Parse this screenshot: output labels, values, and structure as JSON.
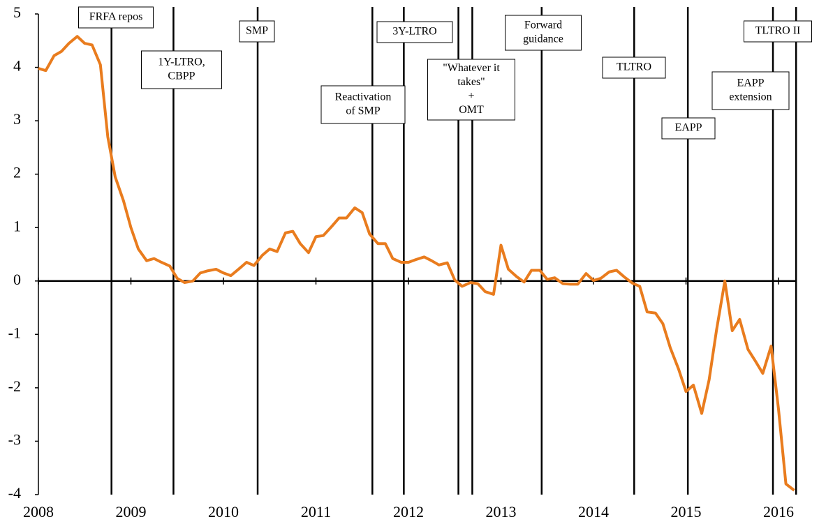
{
  "chart_data": {
    "type": "line",
    "x": [
      2008.0,
      2008.08,
      2008.17,
      2008.25,
      2008.33,
      2008.42,
      2008.5,
      2008.58,
      2008.67,
      2008.75,
      2008.83,
      2008.92,
      2009.0,
      2009.08,
      2009.17,
      2009.25,
      2009.33,
      2009.42,
      2009.5,
      2009.58,
      2009.67,
      2009.75,
      2009.83,
      2009.92,
      2010.0,
      2010.08,
      2010.17,
      2010.25,
      2010.33,
      2010.42,
      2010.5,
      2010.58,
      2010.67,
      2010.75,
      2010.83,
      2010.92,
      2011.0,
      2011.08,
      2011.17,
      2011.25,
      2011.33,
      2011.42,
      2011.5,
      2011.58,
      2011.67,
      2011.75,
      2011.83,
      2011.92,
      2012.0,
      2012.08,
      2012.17,
      2012.25,
      2012.33,
      2012.42,
      2012.5,
      2012.58,
      2012.67,
      2012.75,
      2012.83,
      2012.92,
      2013.0,
      2013.08,
      2013.17,
      2013.25,
      2013.33,
      2013.42,
      2013.5,
      2013.58,
      2013.67,
      2013.75,
      2013.83,
      2013.92,
      2014.0,
      2014.08,
      2014.17,
      2014.25,
      2014.33,
      2014.42,
      2014.5,
      2014.58,
      2014.67,
      2014.75,
      2014.83,
      2014.92,
      2015.0,
      2015.08,
      2015.17,
      2015.25,
      2015.33,
      2015.42,
      2015.5,
      2015.58,
      2015.67,
      2015.75,
      2015.83,
      2015.92,
      2016.0,
      2016.08,
      2016.17
    ],
    "series": [
      {
        "color": "#e97c1e",
        "values": [
          3.98,
          3.94,
          4.22,
          4.3,
          4.45,
          4.58,
          4.45,
          4.42,
          4.05,
          2.7,
          1.95,
          1.5,
          1.0,
          0.6,
          0.38,
          0.42,
          0.35,
          0.28,
          0.05,
          -0.03,
          0.0,
          0.15,
          0.19,
          0.22,
          0.15,
          0.1,
          0.23,
          0.35,
          0.29,
          0.48,
          0.6,
          0.55,
          0.9,
          0.93,
          0.7,
          0.53,
          0.83,
          0.85,
          1.02,
          1.18,
          1.18,
          1.37,
          1.28,
          0.88,
          0.7,
          0.7,
          0.42,
          0.35,
          0.35,
          0.4,
          0.45,
          0.38,
          0.3,
          0.34,
          0.02,
          -0.1,
          -0.03,
          -0.05,
          -0.2,
          -0.25,
          0.67,
          0.22,
          0.08,
          -0.02,
          0.2,
          0.2,
          0.03,
          0.06,
          -0.05,
          -0.06,
          -0.06,
          0.14,
          0.01,
          0.05,
          0.17,
          0.2,
          0.08,
          -0.04,
          -0.1,
          -0.58,
          -0.6,
          -0.8,
          -1.25,
          -1.65,
          -2.07,
          -1.95,
          -2.48,
          -1.85,
          -0.92,
          0.0,
          -0.93,
          -0.72,
          -1.28,
          -1.5,
          -1.73,
          -1.22,
          -2.4,
          -3.8,
          -3.92
        ]
      }
    ],
    "xlim": [
      2008,
      2016.2
    ],
    "xticks": [
      2008,
      2009,
      2010,
      2011,
      2012,
      2013,
      2014,
      2015,
      2016
    ],
    "ylim": [
      -4,
      5
    ],
    "yticks": [
      -4,
      -3,
      -2,
      -1,
      0,
      1,
      2,
      3,
      4,
      5
    ],
    "events": [
      {
        "x": 2008.79,
        "label": [
          "FRFA repos"
        ]
      },
      {
        "x": 2009.46,
        "label": [
          "1Y-LTRO,",
          "CBPP"
        ]
      },
      {
        "x": 2010.37,
        "label": [
          "SMP"
        ]
      },
      {
        "x": 2011.61,
        "label": [
          "Reactivation",
          "of SMP"
        ]
      },
      {
        "x": 2011.95,
        "label": [
          "3Y-LTRO"
        ]
      },
      {
        "x": 2012.54,
        "label": [
          "\"Whatever it",
          "takes\"",
          "+",
          "OMT"
        ]
      },
      {
        "x": 2012.69
      },
      {
        "x": 2013.44,
        "label": [
          "Forward",
          "guidance"
        ]
      },
      {
        "x": 2014.44,
        "label": [
          "TLTRO"
        ]
      },
      {
        "x": 2015.02,
        "label": [
          "EAPP"
        ]
      },
      {
        "x": 2015.94,
        "label": [
          "EAPP",
          "extension"
        ]
      },
      {
        "x": 2016.19,
        "label": [
          "TLTRO II"
        ]
      }
    ]
  }
}
